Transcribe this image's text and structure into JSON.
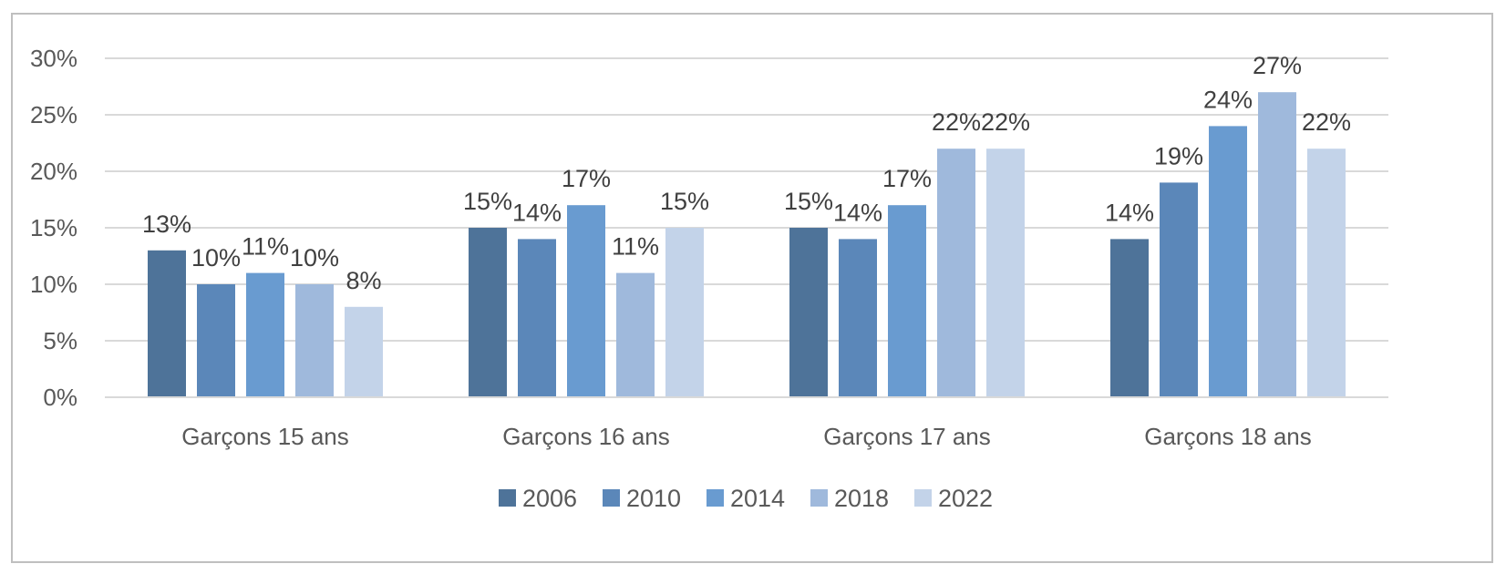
{
  "chart_data": {
    "type": "bar",
    "title": "",
    "xlabel": "",
    "ylabel": "",
    "ylim": [
      0,
      30
    ],
    "y_ticks": [
      {
        "value": 0,
        "label": "0%"
      },
      {
        "value": 5,
        "label": "5%"
      },
      {
        "value": 10,
        "label": "10%"
      },
      {
        "value": 15,
        "label": "15%"
      },
      {
        "value": 20,
        "label": "20%"
      },
      {
        "value": 25,
        "label": "25%"
      },
      {
        "value": 30,
        "label": "30%"
      }
    ],
    "grid": true,
    "legend_position": "bottom",
    "categories": [
      "Garçons 15 ans",
      "Garçons 16 ans",
      "Garçons 17 ans",
      "Garçons 18 ans"
    ],
    "series": [
      {
        "name": "2006",
        "color": "#4e7399",
        "values": [
          13,
          15,
          15,
          14
        ],
        "labels": [
          "13%",
          "15%",
          "15%",
          "14%"
        ]
      },
      {
        "name": "2010",
        "color": "#5b87b9",
        "values": [
          10,
          14,
          14,
          19
        ],
        "labels": [
          "10%",
          "14%",
          "14%",
          "19%"
        ]
      },
      {
        "name": "2014",
        "color": "#699bd0",
        "values": [
          11,
          17,
          17,
          24
        ],
        "labels": [
          "11%",
          "17%",
          "17%",
          "24%"
        ]
      },
      {
        "name": "2018",
        "color": "#9fb9dc",
        "values": [
          10,
          11,
          22,
          27
        ],
        "labels": [
          "10%",
          "11%",
          "22%",
          "27%"
        ]
      },
      {
        "name": "2022",
        "color": "#c3d3e9",
        "values": [
          8,
          15,
          22,
          22
        ],
        "labels": [
          "8%",
          "15%",
          "22%",
          "22%"
        ]
      }
    ]
  }
}
